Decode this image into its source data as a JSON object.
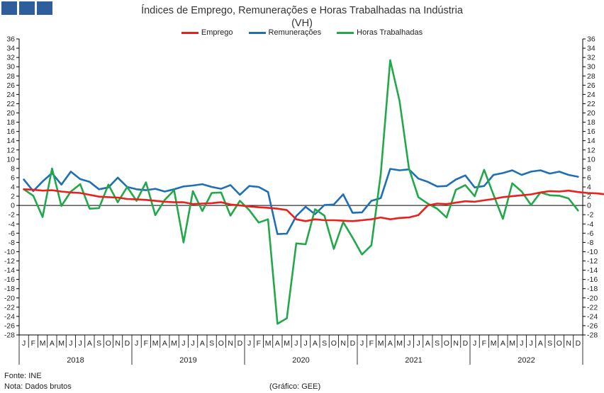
{
  "header": {
    "title": "Índices de Emprego, Remunerações e Horas Trabalhadas na Indústria",
    "subtitle": "(VH)"
  },
  "footer": {
    "source": "Fonte: INE",
    "note": "Nota: Dados brutos",
    "credit": "(Gráfico: GEE)"
  },
  "colors": {
    "emprego": "#e8211d",
    "remuneracoes": "#1f6fb5",
    "horas": "#22a84a",
    "logo": "#2e5f9c",
    "axis": "#000000"
  },
  "chart_data": {
    "type": "line",
    "title": "Índices de Emprego, Remunerações e Horas Trabalhadas na Indústria",
    "subtitle": "(VH)",
    "ylim": [
      -28,
      36
    ],
    "yticks": [
      -28,
      -26,
      -24,
      -22,
      -20,
      -18,
      -16,
      -14,
      -12,
      -10,
      -8,
      -6,
      -4,
      -2,
      0,
      2,
      4,
      6,
      8,
      10,
      12,
      14,
      16,
      18,
      20,
      22,
      24,
      26,
      28,
      30,
      32,
      34,
      36
    ],
    "month_labels": [
      "J",
      "F",
      "M",
      "A",
      "M",
      "J",
      "J",
      "A",
      "S",
      "O",
      "N",
      "D"
    ],
    "years": [
      "2018",
      "2019",
      "2020",
      "2021",
      "2022"
    ],
    "legend_position": "top-center",
    "grid": false,
    "series": [
      {
        "name": "Emprego",
        "values": [
          3.5,
          3.4,
          3.2,
          3.3,
          3.0,
          2.8,
          2.7,
          2.3,
          1.9,
          1.8,
          1.7,
          1.4,
          1.3,
          1.2,
          1.0,
          0.8,
          0.7,
          0.7,
          0.3,
          0.4,
          0.5,
          0.7,
          0.2,
          0.0,
          -0.2,
          -0.4,
          -0.5,
          -0.7,
          -1.0,
          -3.0,
          -3.4,
          -3.0,
          -3.2,
          -3.2,
          -3.3,
          -3.4,
          -3.2,
          -3.0,
          -2.6,
          -3.0,
          -2.7,
          -2.6,
          -2.1,
          0.0,
          0.4,
          0.3,
          0.6,
          0.9,
          0.8,
          1.1,
          1.4,
          1.8,
          2.0,
          2.2,
          2.4,
          2.8,
          3.1,
          3.0,
          3.2,
          2.9,
          2.7,
          2.6,
          2.4,
          2.3,
          2.3,
          2.0,
          1.7,
          2.0
        ]
      },
      {
        "name": "Remunerações",
        "values": [
          5.6,
          3.1,
          5.2,
          7.0,
          4.5,
          7.3,
          5.7,
          5.1,
          3.5,
          3.9,
          6.0,
          4.0,
          3.5,
          3.3,
          3.6,
          3.0,
          3.5,
          4.1,
          4.3,
          4.6,
          4.0,
          3.6,
          4.4,
          2.3,
          4.2,
          4.0,
          2.9,
          -6.2,
          -6.1,
          -2.3,
          -0.3,
          -1.9,
          0.1,
          0.2,
          2.4,
          -1.6,
          -1.5,
          1.0,
          1.6,
          7.9,
          7.6,
          7.8,
          5.8,
          5.1,
          4.1,
          4.2,
          5.6,
          6.5,
          3.9,
          4.2,
          6.6,
          7.0,
          7.6,
          6.6,
          7.3,
          7.6,
          6.9,
          7.3,
          6.6,
          6.2
        ]
      },
      {
        "name": "Horas Trabalhadas",
        "values": [
          3.5,
          2.1,
          -2.5,
          8.0,
          -0.1,
          3.0,
          4.6,
          -0.7,
          -0.6,
          4.5,
          0.7,
          4.0,
          1.0,
          5.0,
          -2.1,
          1.2,
          3.3,
          -8.0,
          3.1,
          -1.2,
          2.7,
          2.8,
          -2.2,
          1.0,
          -1.0,
          -3.7,
          -3.0,
          -25.6,
          -24.4,
          -8.2,
          -8.4,
          -0.8,
          -2.2,
          -9.4,
          -3.6,
          -7.0,
          -10.6,
          -8.6,
          6.8,
          31.4,
          22.6,
          8.0,
          1.8,
          0.4,
          -0.7,
          -2.6,
          3.4,
          4.4,
          2.0,
          7.7,
          2.3,
          -2.9,
          4.8,
          3.0,
          0.1,
          2.8,
          2.2,
          2.1,
          1.5,
          -1.1
        ]
      }
    ]
  }
}
